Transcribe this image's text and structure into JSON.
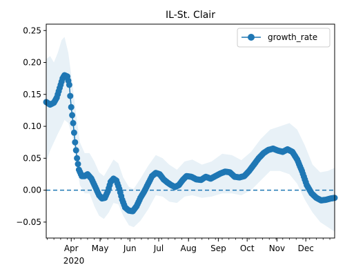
{
  "chart_data": {
    "type": "line",
    "title": "IL-St. Clair",
    "xlabel": "",
    "ylabel": "",
    "x_ticks": [
      "Apr",
      "May",
      "Jun",
      "Jul",
      "Aug",
      "Sep",
      "Oct",
      "Nov",
      "Dec"
    ],
    "x_year_label": "2020",
    "y_ticks": [
      "−0.05",
      "0.00",
      "0.05",
      "0.10",
      "0.15",
      "0.20",
      "0.25"
    ],
    "ylim": [
      -0.075,
      0.26
    ],
    "xlim": [
      "2020-03-06",
      "2020-12-31"
    ],
    "grid": false,
    "legend": {
      "position": "top-right",
      "entries": [
        "growth_rate"
      ]
    },
    "reference_line": {
      "y": 0.0,
      "style": "dashed"
    },
    "series": [
      {
        "name": "growth_rate",
        "color": "#1f77b4",
        "marker": "circle",
        "points": [
          [
            "2020-03-06",
            0.138
          ],
          [
            "2020-03-10",
            0.134
          ],
          [
            "2020-03-14",
            0.137
          ],
          [
            "2020-03-17",
            0.145
          ],
          [
            "2020-03-20",
            0.16
          ],
          [
            "2020-03-23",
            0.175
          ],
          [
            "2020-03-25",
            0.18
          ],
          [
            "2020-03-28",
            0.178
          ],
          [
            "2020-03-30",
            0.165
          ],
          [
            "2020-04-01",
            0.13
          ],
          [
            "2020-04-03",
            0.105
          ],
          [
            "2020-04-05",
            0.075
          ],
          [
            "2020-04-07",
            0.05
          ],
          [
            "2020-04-09",
            0.032
          ],
          [
            "2020-04-12",
            0.022
          ],
          [
            "2020-04-15",
            0.022
          ],
          [
            "2020-04-18",
            0.025
          ],
          [
            "2020-04-22",
            0.018
          ],
          [
            "2020-04-26",
            0.005
          ],
          [
            "2020-04-30",
            -0.008
          ],
          [
            "2020-05-03",
            -0.013
          ],
          [
            "2020-05-06",
            -0.012
          ],
          [
            "2020-05-09",
            -0.002
          ],
          [
            "2020-05-12",
            0.013
          ],
          [
            "2020-05-15",
            0.018
          ],
          [
            "2020-05-18",
            0.015
          ],
          [
            "2020-05-21",
            0.002
          ],
          [
            "2020-05-24",
            -0.015
          ],
          [
            "2020-05-27",
            -0.027
          ],
          [
            "2020-05-31",
            -0.032
          ],
          [
            "2020-06-04",
            -0.033
          ],
          [
            "2020-06-08",
            -0.025
          ],
          [
            "2020-06-12",
            -0.012
          ],
          [
            "2020-06-16",
            -0.002
          ],
          [
            "2020-06-20",
            0.01
          ],
          [
            "2020-06-24",
            0.022
          ],
          [
            "2020-06-28",
            0.027
          ],
          [
            "2020-07-02",
            0.025
          ],
          [
            "2020-07-06",
            0.017
          ],
          [
            "2020-07-10",
            0.012
          ],
          [
            "2020-07-14",
            0.008
          ],
          [
            "2020-07-18",
            0.005
          ],
          [
            "2020-07-22",
            0.008
          ],
          [
            "2020-07-26",
            0.016
          ],
          [
            "2020-07-30",
            0.022
          ],
          [
            "2020-08-04",
            0.021
          ],
          [
            "2020-08-09",
            0.017
          ],
          [
            "2020-08-14",
            0.016
          ],
          [
            "2020-08-19",
            0.021
          ],
          [
            "2020-08-24",
            0.018
          ],
          [
            "2020-08-29",
            0.022
          ],
          [
            "2020-09-03",
            0.026
          ],
          [
            "2020-09-08",
            0.029
          ],
          [
            "2020-09-13",
            0.028
          ],
          [
            "2020-09-18",
            0.021
          ],
          [
            "2020-09-23",
            0.02
          ],
          [
            "2020-09-28",
            0.022
          ],
          [
            "2020-10-03",
            0.03
          ],
          [
            "2020-10-08",
            0.04
          ],
          [
            "2020-10-13",
            0.05
          ],
          [
            "2020-10-18",
            0.058
          ],
          [
            "2020-10-23",
            0.063
          ],
          [
            "2020-10-28",
            0.065
          ],
          [
            "2020-11-02",
            0.062
          ],
          [
            "2020-11-07",
            0.06
          ],
          [
            "2020-11-12",
            0.064
          ],
          [
            "2020-11-17",
            0.06
          ],
          [
            "2020-11-22",
            0.048
          ],
          [
            "2020-11-27",
            0.03
          ],
          [
            "2020-12-02",
            0.008
          ],
          [
            "2020-12-07",
            -0.005
          ],
          [
            "2020-12-12",
            -0.012
          ],
          [
            "2020-12-17",
            -0.016
          ],
          [
            "2020-12-22",
            -0.015
          ],
          [
            "2020-12-27",
            -0.013
          ],
          [
            "2020-12-31",
            -0.012
          ]
        ],
        "ci_upper": [
          [
            "2020-03-06",
            0.205
          ],
          [
            "2020-03-10",
            0.21
          ],
          [
            "2020-03-14",
            0.2
          ],
          [
            "2020-03-18",
            0.215
          ],
          [
            "2020-03-22",
            0.235
          ],
          [
            "2020-03-25",
            0.24
          ],
          [
            "2020-03-29",
            0.215
          ],
          [
            "2020-04-02",
            0.17
          ],
          [
            "2020-04-06",
            0.12
          ],
          [
            "2020-04-10",
            0.075
          ],
          [
            "2020-04-15",
            0.058
          ],
          [
            "2020-04-20",
            0.058
          ],
          [
            "2020-04-25",
            0.045
          ],
          [
            "2020-04-30",
            0.028
          ],
          [
            "2020-05-05",
            0.022
          ],
          [
            "2020-05-10",
            0.035
          ],
          [
            "2020-05-15",
            0.048
          ],
          [
            "2020-05-20",
            0.042
          ],
          [
            "2020-05-25",
            0.02
          ],
          [
            "2020-05-31",
            0.005
          ],
          [
            "2020-06-05",
            0.002
          ],
          [
            "2020-06-12",
            0.018
          ],
          [
            "2020-06-20",
            0.038
          ],
          [
            "2020-06-28",
            0.055
          ],
          [
            "2020-07-05",
            0.05
          ],
          [
            "2020-07-12",
            0.04
          ],
          [
            "2020-07-20",
            0.032
          ],
          [
            "2020-07-28",
            0.045
          ],
          [
            "2020-08-05",
            0.048
          ],
          [
            "2020-08-15",
            0.04
          ],
          [
            "2020-08-25",
            0.045
          ],
          [
            "2020-09-05",
            0.057
          ],
          [
            "2020-09-15",
            0.055
          ],
          [
            "2020-09-25",
            0.047
          ],
          [
            "2020-10-05",
            0.06
          ],
          [
            "2020-10-15",
            0.08
          ],
          [
            "2020-10-25",
            0.095
          ],
          [
            "2020-11-04",
            0.1
          ],
          [
            "2020-11-14",
            0.105
          ],
          [
            "2020-11-22",
            0.095
          ],
          [
            "2020-11-30",
            0.07
          ],
          [
            "2020-12-08",
            0.04
          ],
          [
            "2020-12-16",
            0.028
          ],
          [
            "2020-12-24",
            0.03
          ],
          [
            "2020-12-31",
            0.035
          ]
        ],
        "ci_lower": [
          [
            "2020-03-06",
            0.045
          ],
          [
            "2020-03-10",
            0.062
          ],
          [
            "2020-03-14",
            0.075
          ],
          [
            "2020-03-18",
            0.088
          ],
          [
            "2020-03-22",
            0.1
          ],
          [
            "2020-03-25",
            0.11
          ],
          [
            "2020-03-29",
            0.105
          ],
          [
            "2020-04-02",
            0.085
          ],
          [
            "2020-04-06",
            0.045
          ],
          [
            "2020-04-10",
            0.008
          ],
          [
            "2020-04-15",
            -0.005
          ],
          [
            "2020-04-20",
            -0.005
          ],
          [
            "2020-04-25",
            -0.025
          ],
          [
            "2020-04-30",
            -0.04
          ],
          [
            "2020-05-05",
            -0.045
          ],
          [
            "2020-05-10",
            -0.035
          ],
          [
            "2020-05-15",
            -0.02
          ],
          [
            "2020-05-20",
            -0.022
          ],
          [
            "2020-05-25",
            -0.04
          ],
          [
            "2020-05-31",
            -0.055
          ],
          [
            "2020-06-05",
            -0.058
          ],
          [
            "2020-06-12",
            -0.048
          ],
          [
            "2020-06-20",
            -0.03
          ],
          [
            "2020-06-28",
            -0.008
          ],
          [
            "2020-07-05",
            -0.01
          ],
          [
            "2020-07-12",
            -0.018
          ],
          [
            "2020-07-20",
            -0.02
          ],
          [
            "2020-07-28",
            -0.01
          ],
          [
            "2020-08-05",
            -0.008
          ],
          [
            "2020-08-15",
            -0.012
          ],
          [
            "2020-08-25",
            -0.01
          ],
          [
            "2020-09-05",
            -0.005
          ],
          [
            "2020-09-15",
            -0.005
          ],
          [
            "2020-09-25",
            -0.008
          ],
          [
            "2020-10-05",
            0.0
          ],
          [
            "2020-10-15",
            0.015
          ],
          [
            "2020-10-25",
            0.03
          ],
          [
            "2020-11-04",
            0.03
          ],
          [
            "2020-11-14",
            0.025
          ],
          [
            "2020-11-22",
            0.01
          ],
          [
            "2020-11-30",
            -0.015
          ],
          [
            "2020-12-08",
            -0.035
          ],
          [
            "2020-12-16",
            -0.05
          ],
          [
            "2020-12-24",
            -0.058
          ],
          [
            "2020-12-31",
            -0.065
          ]
        ]
      }
    ]
  }
}
